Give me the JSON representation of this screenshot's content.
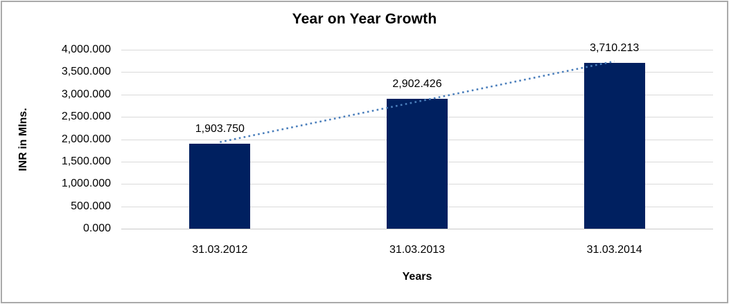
{
  "frame": {
    "border_color": "#a9a9a9"
  },
  "chart_data": {
    "type": "bar",
    "title": "Year on Year Growth",
    "categories": [
      "31.03.2012",
      "31.03.2013",
      "31.03.2014"
    ],
    "values": [
      1903.75,
      2902.426,
      3710.213
    ],
    "data_labels": [
      "1,903.750",
      "2,902.426",
      "3,710.213"
    ],
    "xlabel": "Years",
    "ylabel": "INR in Mlns.",
    "ylim": [
      0,
      4000
    ],
    "ytick_step": 500,
    "ytick_labels": [
      "0.000",
      "500.000",
      "1,000.000",
      "1,500.000",
      "2,000.000",
      "2,500.000",
      "3,000.000",
      "3,500.000",
      "4,000.000"
    ],
    "grid": true,
    "legend": "none",
    "bar_color": "#002060",
    "gridline_color": "#d9d9d9",
    "trendline": {
      "type": "linear",
      "style": "dotted",
      "color": "#4a7ebb"
    }
  }
}
